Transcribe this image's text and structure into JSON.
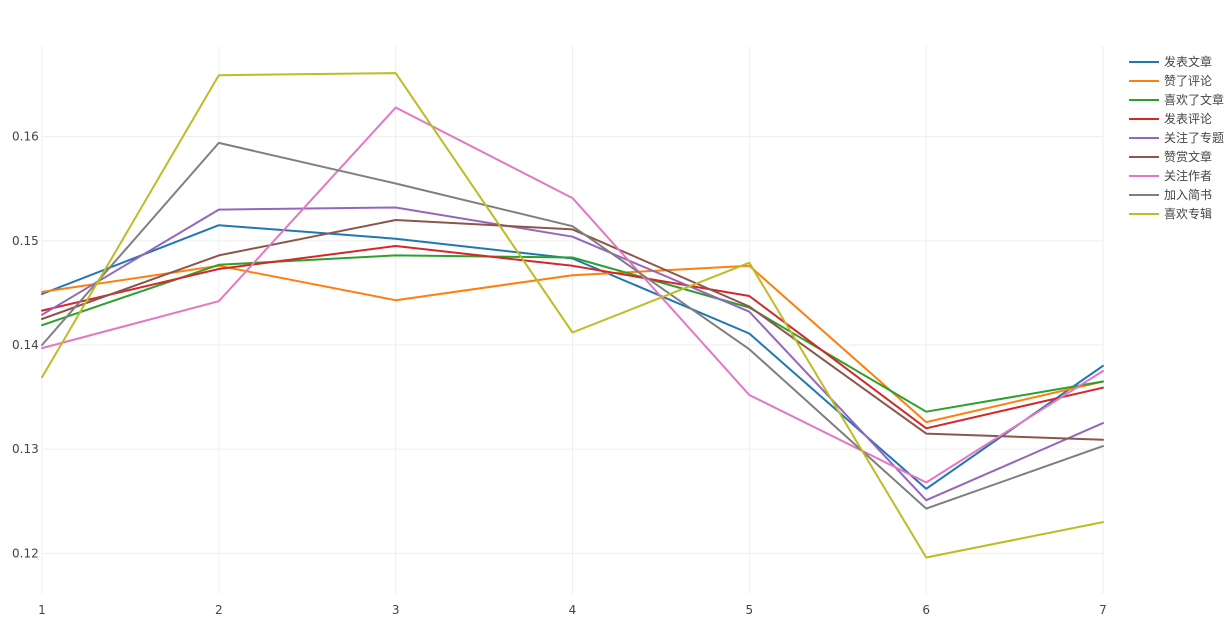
{
  "chart_data": {
    "type": "line",
    "title": "",
    "xlabel": "",
    "ylabel": "",
    "x": [
      1,
      2,
      3,
      4,
      5,
      6,
      7
    ],
    "xlim": [
      1,
      7
    ],
    "ylim": [
      0.1161,
      0.1687
    ],
    "x_ticks": [
      1,
      2,
      3,
      4,
      5,
      6,
      7
    ],
    "y_ticks": [
      0.12,
      0.13,
      0.14,
      0.15,
      0.16
    ],
    "y_tick_labels": [
      "0.12",
      "0.13",
      "0.14",
      "0.15",
      "0.16"
    ],
    "grid": true,
    "legend_position": "top-right",
    "series": [
      {
        "name": "发表文章",
        "color": "#1f77b4",
        "values": [
          0.1449,
          0.1515,
          0.1502,
          0.1483,
          0.1411,
          0.1262,
          0.138
        ]
      },
      {
        "name": "赞了评论",
        "color": "#ff7f0e",
        "values": [
          0.1451,
          0.1476,
          0.1443,
          0.1467,
          0.1476,
          0.1326,
          0.1365
        ]
      },
      {
        "name": "喜欢了文章",
        "color": "#2ca02c",
        "values": [
          0.1419,
          0.1477,
          0.1486,
          0.1484,
          0.1436,
          0.1336,
          0.1365
        ]
      },
      {
        "name": "发表评论",
        "color": "#d62728",
        "values": [
          0.1433,
          0.1473,
          0.1495,
          0.1476,
          0.1447,
          0.132,
          0.1359
        ]
      },
      {
        "name": "关注了专题",
        "color": "#9467bd",
        "values": [
          0.1429,
          0.153,
          0.1532,
          0.1504,
          0.1432,
          0.1251,
          0.1325
        ]
      },
      {
        "name": "赞赏文章",
        "color": "#8c564b",
        "values": [
          0.1425,
          0.1486,
          0.152,
          0.1511,
          0.1437,
          0.1315,
          0.1309
        ]
      },
      {
        "name": "关注作者",
        "color": "#e377c2",
        "values": [
          0.1397,
          0.1442,
          0.1628,
          0.1541,
          0.1352,
          0.1268,
          0.1375
        ]
      },
      {
        "name": "加入简书",
        "color": "#7f7f7f",
        "values": [
          0.14,
          0.1594,
          0.1555,
          0.1514,
          0.1396,
          0.1243,
          0.1303
        ]
      },
      {
        "name": "喜欢专辑",
        "color": "#bcbd22",
        "values": [
          0.1369,
          0.1659,
          0.1661,
          0.1412,
          0.1479,
          0.1196,
          0.123
        ]
      }
    ]
  }
}
